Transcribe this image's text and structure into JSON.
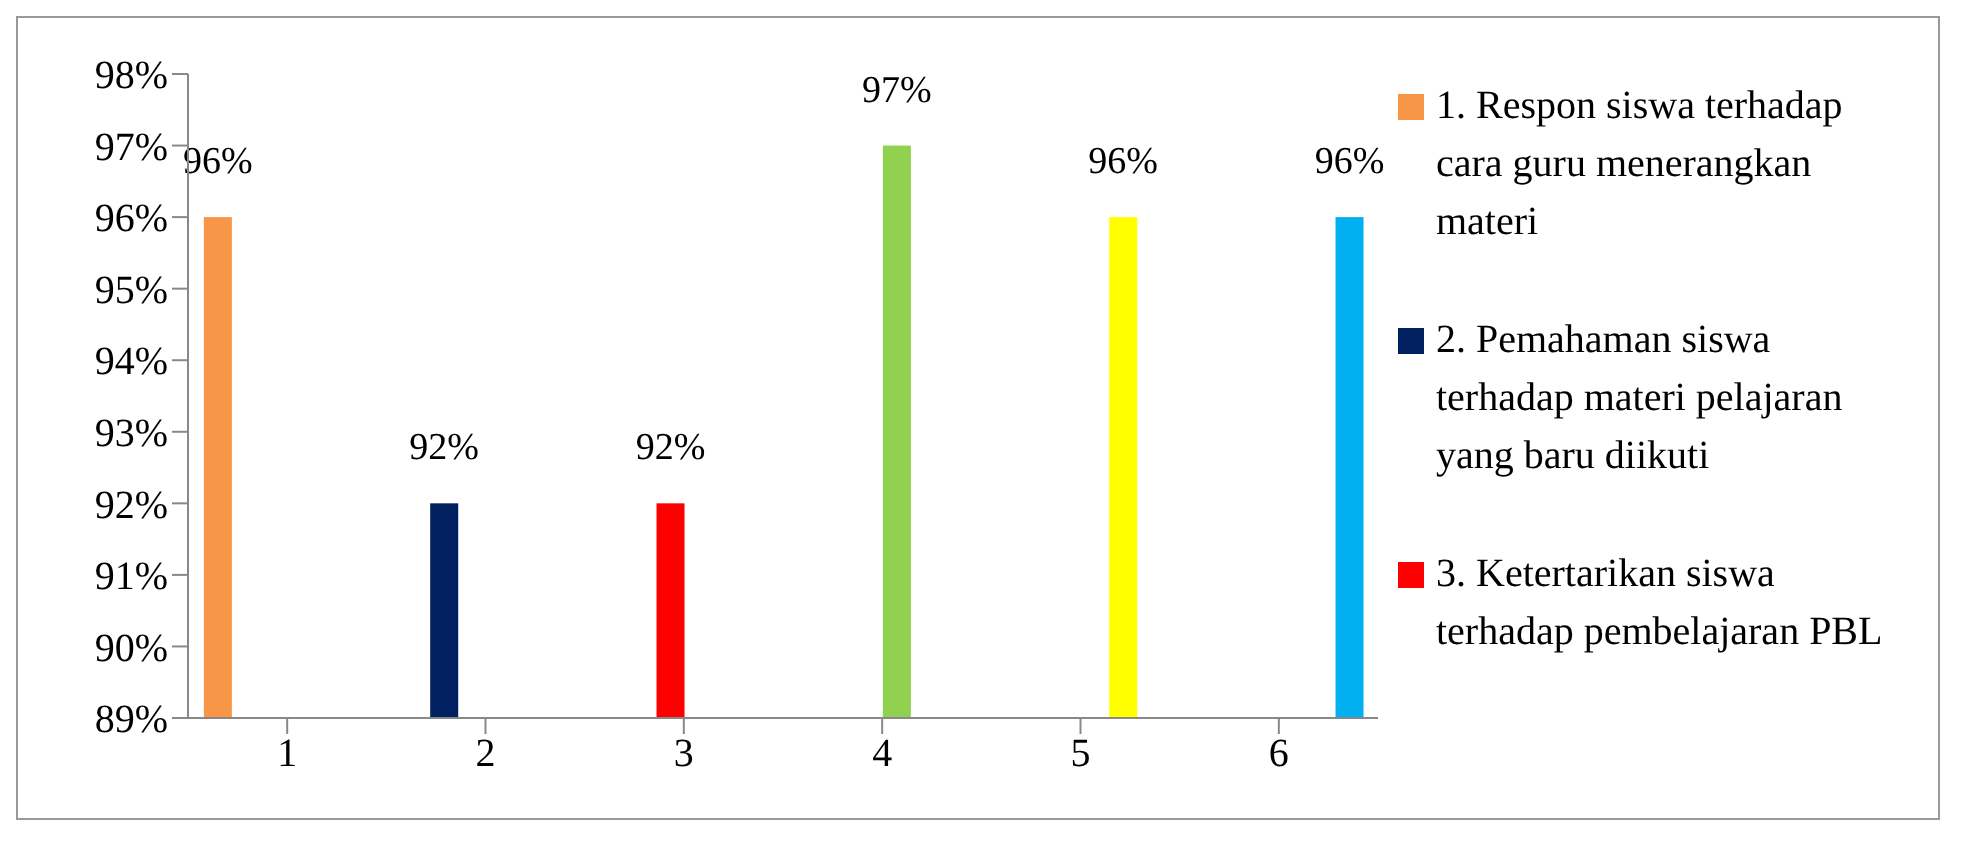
{
  "chart_data": {
    "type": "bar",
    "categories": [
      "1",
      "2",
      "3",
      "4",
      "5",
      "6"
    ],
    "series": [
      {
        "name": "1. Respon siswa terhadap cara guru menerangkan materi",
        "color": "#f79646",
        "values": [
          96,
          null,
          null,
          null,
          null,
          null
        ],
        "value_labels": [
          "96%",
          null,
          null,
          null,
          null,
          null
        ]
      },
      {
        "name": "2. Pemahaman siswa terhadap materi pelajaran yang baru diikuti",
        "color": "#002060",
        "values": [
          null,
          92,
          null,
          null,
          null,
          null
        ],
        "value_labels": [
          null,
          "92%",
          null,
          null,
          null,
          null
        ]
      },
      {
        "name": "3. Ketertarikan siswa terhadap pembelajaran PBL",
        "color": "#ff0000",
        "values": [
          null,
          null,
          92,
          null,
          null,
          null
        ],
        "value_labels": [
          null,
          null,
          "92%",
          null,
          null,
          null
        ]
      },
      {
        "color": "#92d050",
        "values": [
          null,
          null,
          null,
          97,
          null,
          null
        ],
        "value_labels": [
          null,
          null,
          null,
          "97%",
          null,
          null
        ]
      },
      {
        "color": "#ffff00",
        "values": [
          null,
          null,
          null,
          null,
          96,
          null
        ],
        "value_labels": [
          null,
          null,
          null,
          null,
          "96%",
          null
        ]
      },
      {
        "color": "#00b0f0",
        "values": [
          null,
          null,
          null,
          null,
          null,
          96
        ],
        "value_labels": [
          null,
          null,
          null,
          null,
          null,
          "96%"
        ]
      }
    ],
    "ylim": [
      89,
      98
    ],
    "yticks": [
      {
        "value": 89,
        "label": "89%"
      },
      {
        "value": 90,
        "label": "90%"
      },
      {
        "value": 91,
        "label": "91%"
      },
      {
        "value": 92,
        "label": "92%"
      },
      {
        "value": 93,
        "label": "93%"
      },
      {
        "value": 94,
        "label": "94%"
      },
      {
        "value": 95,
        "label": "95%"
      },
      {
        "value": 96,
        "label": "96%"
      },
      {
        "value": 97,
        "label": "97%"
      },
      {
        "value": 98,
        "label": "98%"
      }
    ],
    "grid": false,
    "legend": "right"
  }
}
